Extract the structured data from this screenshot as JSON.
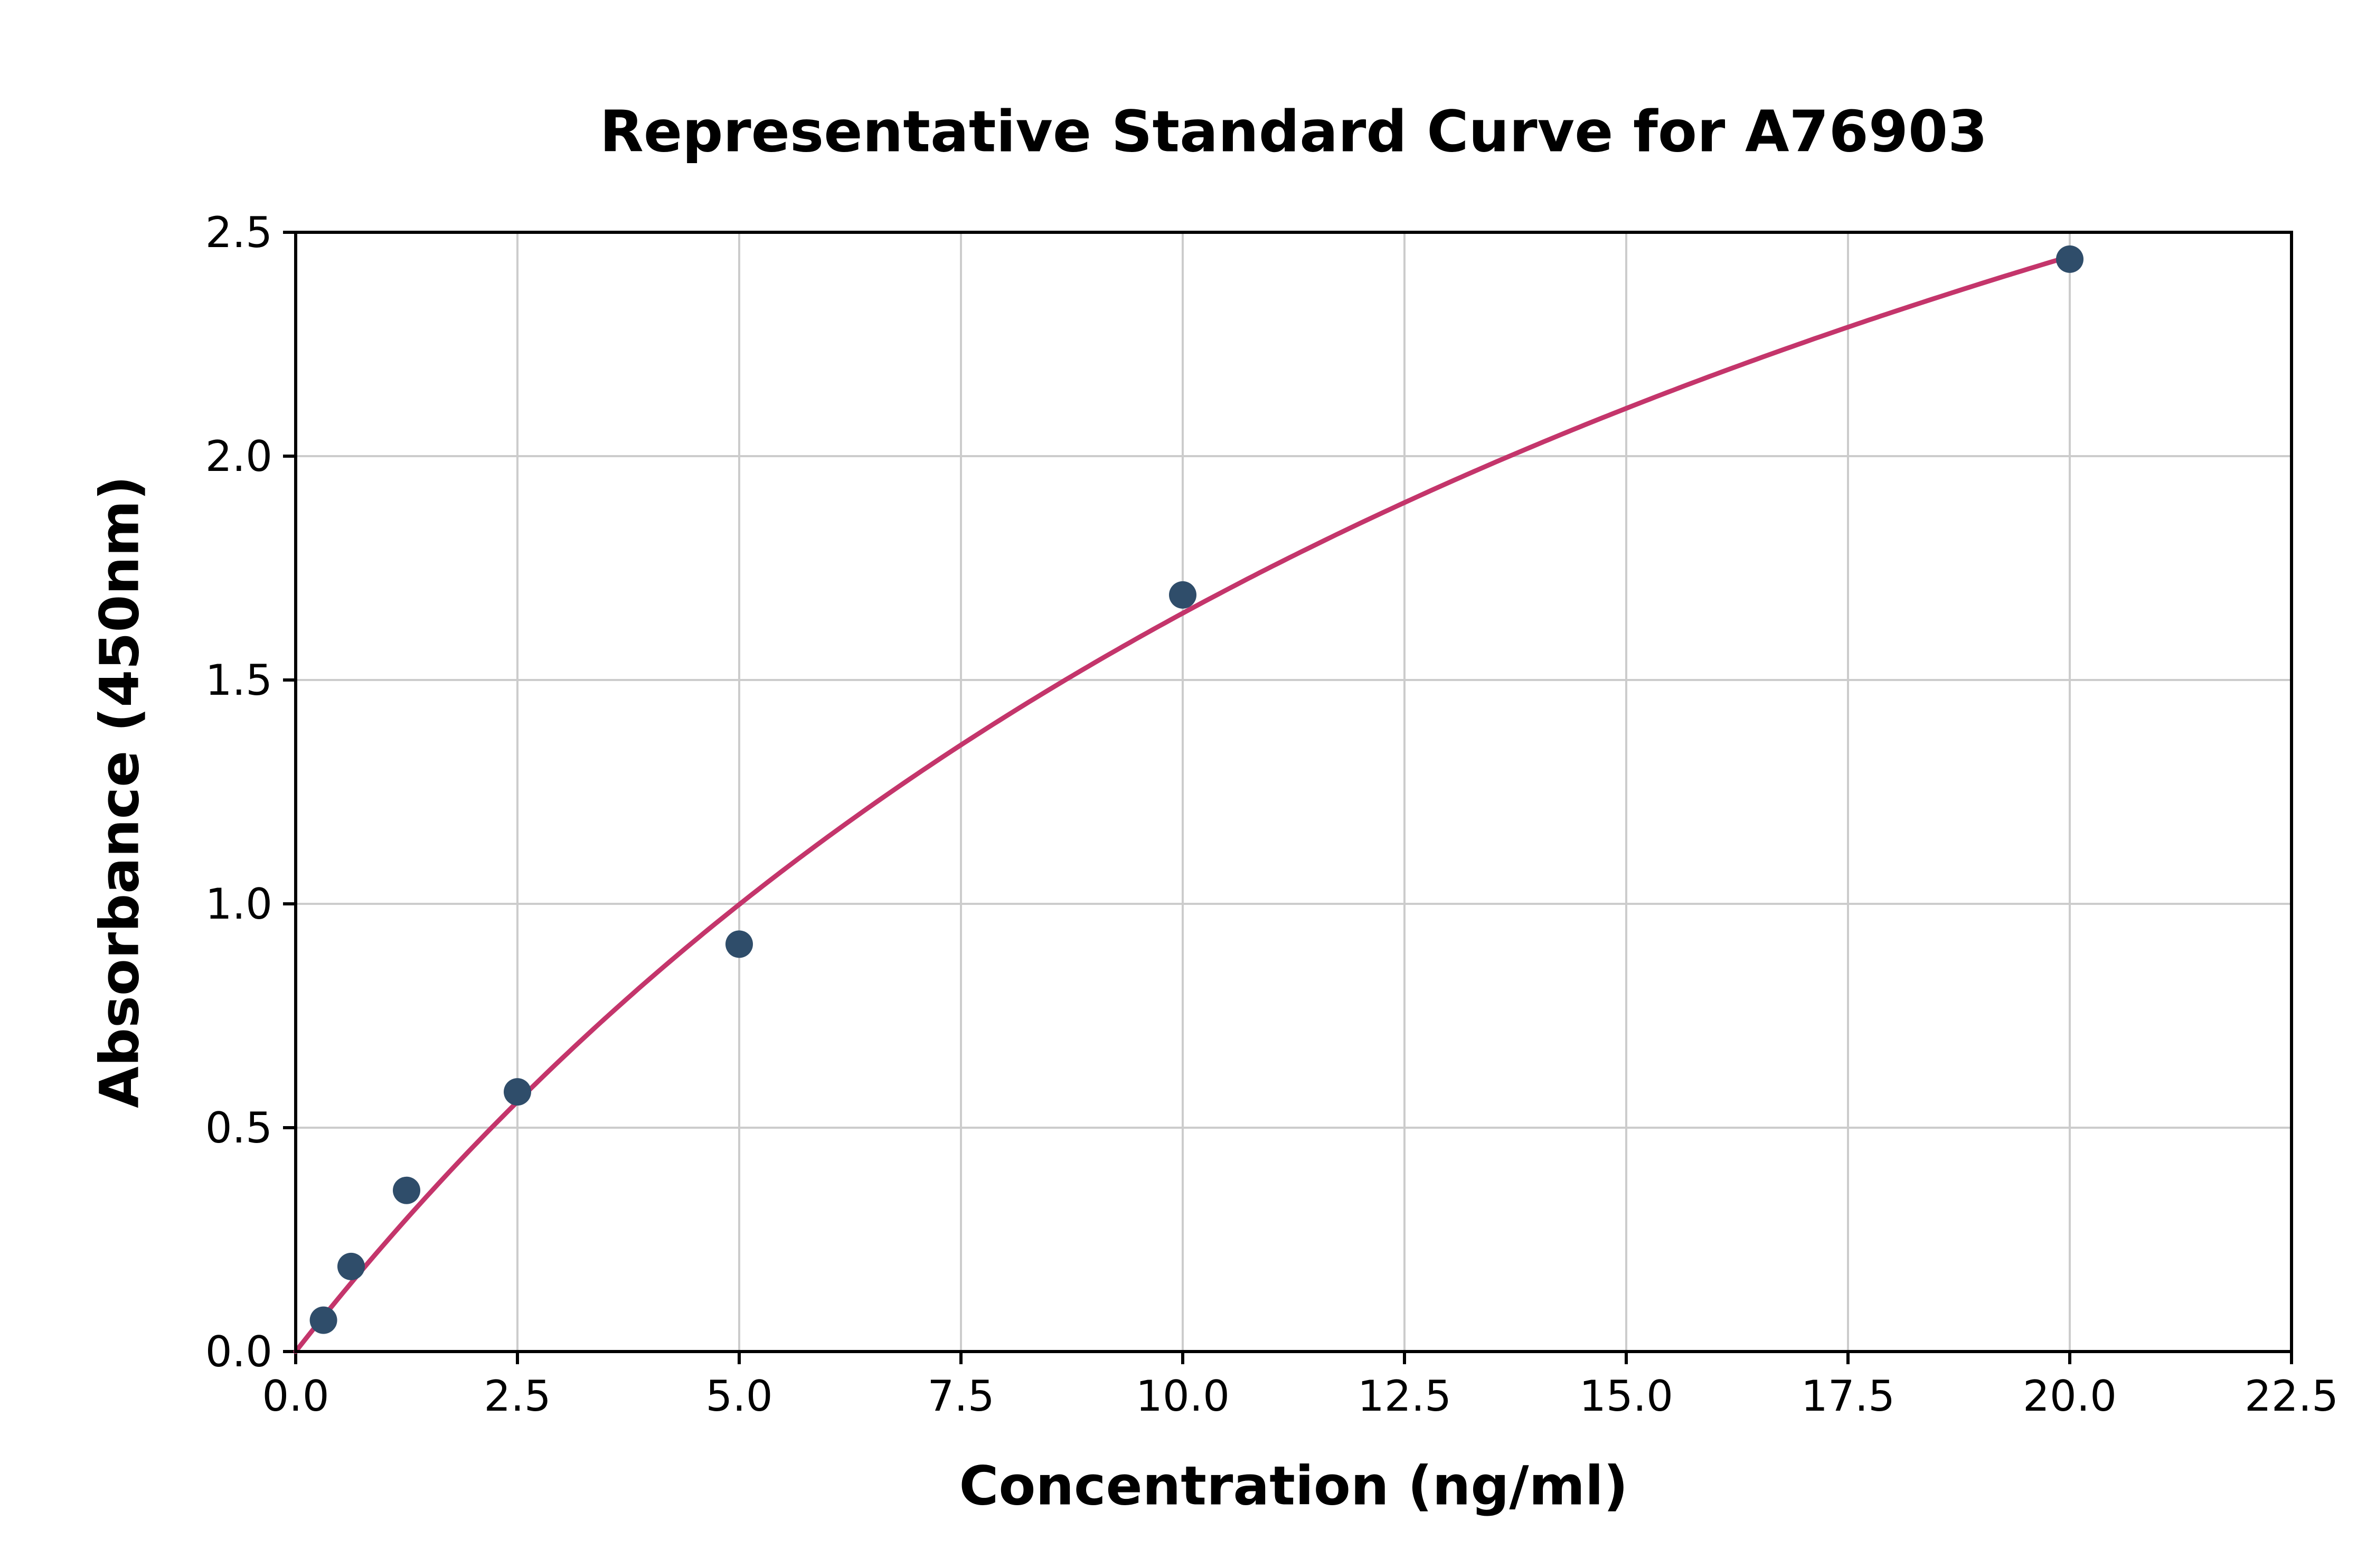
{
  "chart_data": {
    "type": "scatter",
    "title": "Representative Standard Curve for A76903",
    "xlabel": "Concentration (ng/ml)",
    "ylabel": "Absorbance (450nm)",
    "xlim": [
      0,
      22.5
    ],
    "ylim": [
      0,
      2.5
    ],
    "xtick_labels": [
      "0.0",
      "2.5",
      "5.0",
      "7.5",
      "10.0",
      "12.5",
      "15.0",
      "17.5",
      "20.0",
      "22.5"
    ],
    "ytick_labels": [
      "0.0",
      "0.5",
      "1.0",
      "1.5",
      "2.0",
      "2.5"
    ],
    "grid": true,
    "legend": "none",
    "x": [
      0.313,
      0.625,
      1.25,
      2.5,
      5,
      10,
      20
    ],
    "y": [
      0.07,
      0.19,
      0.36,
      0.58,
      0.91,
      1.69,
      2.44
    ],
    "series": [
      {
        "name": "standard-points",
        "type": "scatter"
      },
      {
        "name": "fitted-curve",
        "type": "line"
      }
    ],
    "colors": {
      "point": "#2f4d6a",
      "curve": "#c4356b",
      "grid": "#cccccc",
      "axis": "#000000",
      "background": "#ffffff",
      "text": "#000000"
    }
  }
}
